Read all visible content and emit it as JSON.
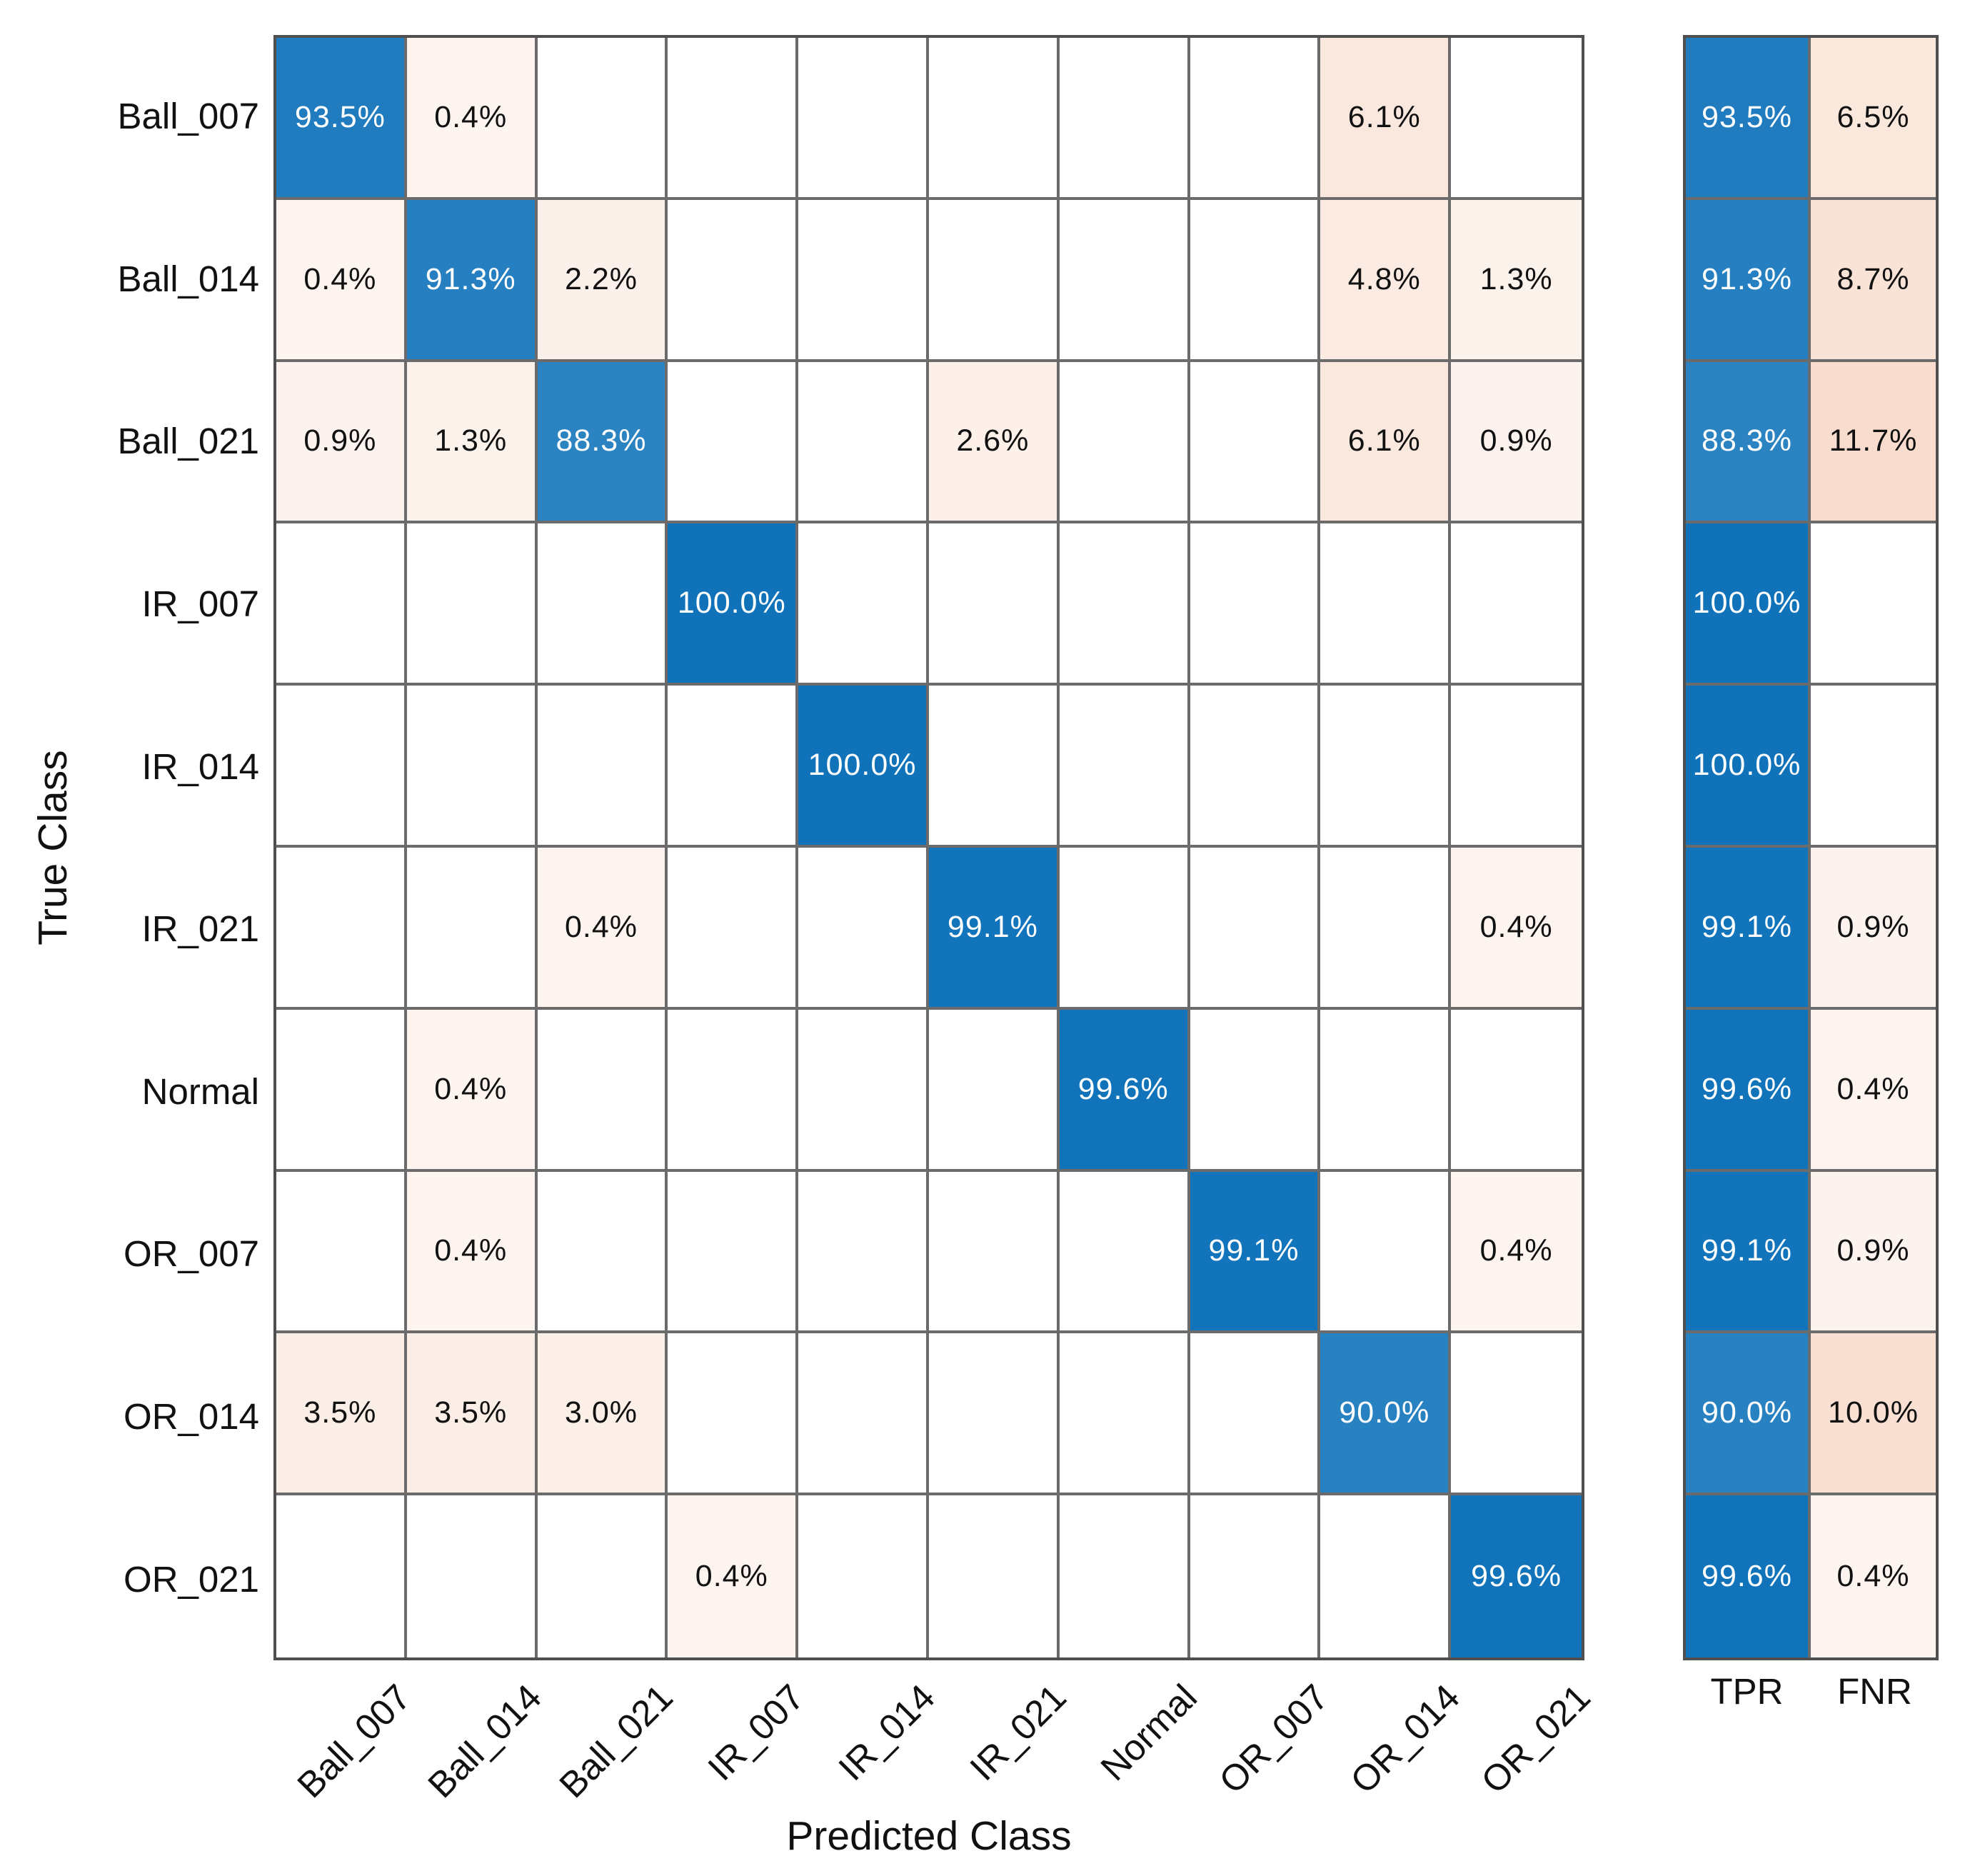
{
  "figure": {
    "xlabel": "Predicted Class",
    "ylabel": "True Class",
    "summary_columns": [
      "TPR",
      "FNR"
    ]
  },
  "chart_data": {
    "type": "heatmap",
    "subtype": "confusion-matrix",
    "title": "",
    "xlabel": "Predicted Class",
    "ylabel": "True Class",
    "unit": "%",
    "classes": [
      "Ball_007",
      "Ball_014",
      "Ball_021",
      "IR_007",
      "IR_014",
      "IR_021",
      "Normal",
      "OR_007",
      "OR_014",
      "OR_021"
    ],
    "matrix": [
      [
        93.5,
        0.4,
        null,
        null,
        null,
        null,
        null,
        null,
        6.1,
        null
      ],
      [
        0.4,
        91.3,
        2.2,
        null,
        null,
        null,
        null,
        null,
        4.8,
        1.3
      ],
      [
        0.9,
        1.3,
        88.3,
        null,
        null,
        2.6,
        null,
        null,
        6.1,
        0.9
      ],
      [
        null,
        null,
        null,
        100.0,
        null,
        null,
        null,
        null,
        null,
        null
      ],
      [
        null,
        null,
        null,
        null,
        100.0,
        null,
        null,
        null,
        null,
        null
      ],
      [
        null,
        null,
        0.4,
        null,
        null,
        99.1,
        null,
        null,
        null,
        0.4
      ],
      [
        null,
        0.4,
        null,
        null,
        null,
        null,
        99.6,
        null,
        null,
        null
      ],
      [
        null,
        0.4,
        null,
        null,
        null,
        null,
        null,
        99.1,
        null,
        0.4
      ],
      [
        3.5,
        3.5,
        3.0,
        null,
        null,
        null,
        null,
        null,
        90.0,
        null
      ],
      [
        null,
        null,
        null,
        0.4,
        null,
        null,
        null,
        null,
        null,
        99.6
      ]
    ],
    "summary": {
      "labels": [
        "TPR",
        "FNR"
      ],
      "tpr": [
        93.5,
        91.3,
        88.3,
        100.0,
        100.0,
        99.1,
        99.6,
        99.1,
        90.0,
        99.6
      ],
      "fnr": [
        6.5,
        8.7,
        11.7,
        null,
        null,
        0.9,
        0.4,
        0.9,
        10.0,
        0.4
      ]
    },
    "legend_position": "none",
    "grid": true,
    "colors": {
      "diagonal_base": "#1073ba",
      "off_diagonal_base": "#f8ddce",
      "grid_line": "#6b6b6b",
      "outer_border": "#4f4f4f",
      "text_on_diagonal": "#ffffff",
      "text_dark": "#111111"
    }
  }
}
